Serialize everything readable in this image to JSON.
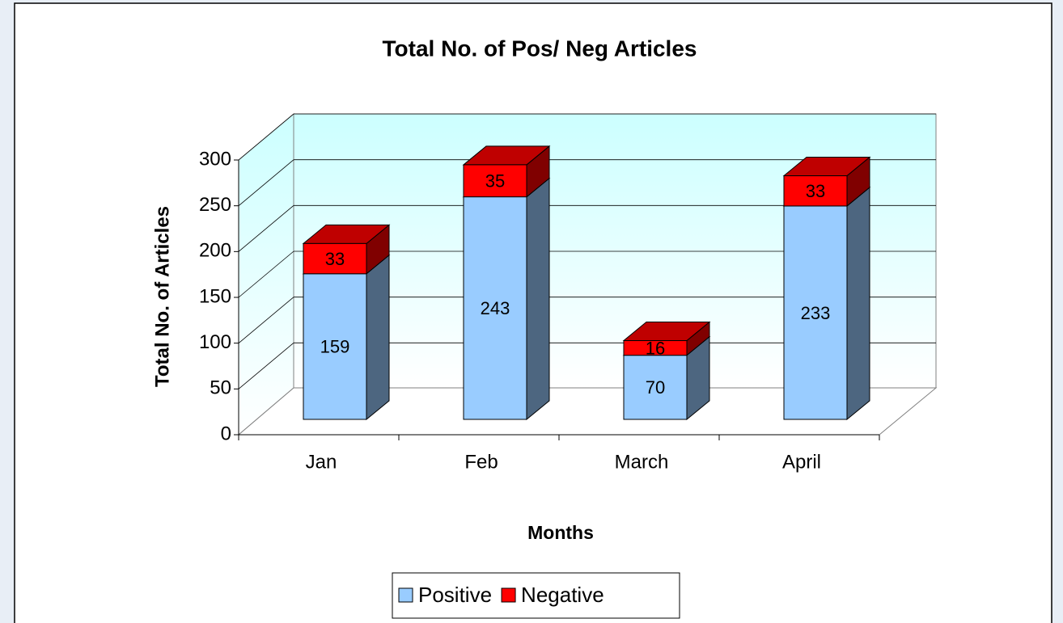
{
  "chart_data": {
    "type": "bar",
    "stacked": true,
    "title": "Total No. of Pos/ Neg Articles",
    "x_label": "Months",
    "y_label": "Total No. of Articles",
    "categories": [
      "Jan",
      "Feb",
      "March",
      "April"
    ],
    "series": [
      {
        "name": "Positive",
        "color": "#99ccff",
        "values": [
          159,
          243,
          70,
          233
        ]
      },
      {
        "name": "Negative",
        "color": "#ff0000",
        "values": [
          33,
          35,
          16,
          33
        ]
      }
    ],
    "ylim": [
      0,
      300
    ],
    "yticks": [
      0,
      50,
      100,
      150,
      200,
      250,
      300
    ],
    "grid": true,
    "legend": "bottom"
  }
}
